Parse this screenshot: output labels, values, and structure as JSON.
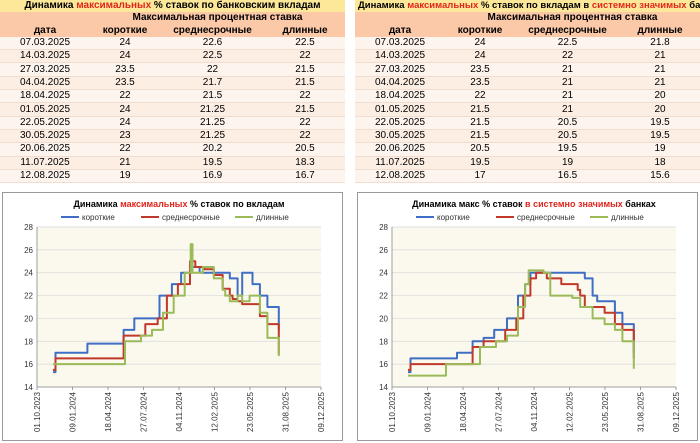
{
  "left": {
    "table": {
      "title_pre": "Динамика ",
      "title_hl": "максимальных",
      "title_post": " % ставок по банковским вкладам",
      "group_header": "Максимальная процентная ставка",
      "columns": [
        "дата",
        "короткие",
        "среднесрочные",
        "длинные"
      ],
      "rows": [
        [
          "07.03.2025",
          "24",
          "22.6",
          "22.5"
        ],
        [
          "14.03.2025",
          "24",
          "22.5",
          "22"
        ],
        [
          "27.03.2025",
          "23.5",
          "22",
          "21.5"
        ],
        [
          "04.04.2025",
          "23.5",
          "21.7",
          "21.5"
        ],
        [
          "18.04.2025",
          "22",
          "21.5",
          "22"
        ],
        [
          "01.05.2025",
          "24",
          "21.25",
          "21.5"
        ],
        [
          "22.05.2025",
          "24",
          "21.25",
          "22"
        ],
        [
          "30.05.2025",
          "23",
          "21.25",
          "22"
        ],
        [
          "20.06.2025",
          "22",
          "20.2",
          "20.5"
        ],
        [
          "11.07.2025",
          "21",
          "19.5",
          "18.3"
        ],
        [
          "12.08.2025",
          "19",
          "16.9",
          "16.7"
        ]
      ]
    },
    "chart_data": {
      "type": "line",
      "title_pre": "Динамика ",
      "title_hl": "максимальных",
      "title_post": " % ставок по вкладам",
      "ylim": [
        14,
        28
      ],
      "yticks": [
        14,
        16,
        18,
        20,
        22,
        24,
        26,
        28
      ],
      "xlim": [
        "2023-10-01",
        "2025-12-09"
      ],
      "xticks": [
        "01.10.2023",
        "09.01.2024",
        "18.04.2024",
        "27.07.2024",
        "04.11.2024",
        "12.02.2025",
        "23.05.2025",
        "31.08.2025",
        "09.12.2025"
      ],
      "series": [
        {
          "name": "короткие",
          "color": "#3f6fc4",
          "points": [
            [
              "2023-11-15",
              15.3
            ],
            [
              "2023-11-22",
              17
            ],
            [
              "2024-02-10",
              17
            ],
            [
              "2024-02-20",
              17.8
            ],
            [
              "2024-04-10",
              17.8
            ],
            [
              "2024-05-15",
              17.8
            ],
            [
              "2024-06-01",
              19
            ],
            [
              "2024-07-01",
              20
            ],
            [
              "2024-08-20",
              20
            ],
            [
              "2024-09-10",
              22
            ],
            [
              "2024-10-15",
              23
            ],
            [
              "2024-11-10",
              24
            ],
            [
              "2024-12-10",
              24.5
            ],
            [
              "2025-01-01",
              24
            ],
            [
              "2025-02-15",
              24
            ],
            [
              "2025-03-07",
              24
            ],
            [
              "2025-03-27",
              23.5
            ],
            [
              "2025-04-18",
              22
            ],
            [
              "2025-05-01",
              24
            ],
            [
              "2025-05-22",
              24
            ],
            [
              "2025-05-30",
              23
            ],
            [
              "2025-06-20",
              22
            ],
            [
              "2025-07-11",
              21
            ],
            [
              "2025-08-12",
              19
            ]
          ]
        },
        {
          "name": "среднесрочные",
          "color": "#c0392b",
          "points": [
            [
              "2023-11-15",
              15.5
            ],
            [
              "2023-11-22",
              16.5
            ],
            [
              "2024-05-15",
              16.5
            ],
            [
              "2024-06-01",
              18.5
            ],
            [
              "2024-07-10",
              18.5
            ],
            [
              "2024-08-01",
              19.5
            ],
            [
              "2024-09-05",
              20
            ],
            [
              "2024-10-01",
              22
            ],
            [
              "2024-11-01",
              23
            ],
            [
              "2024-12-05",
              25
            ],
            [
              "2024-12-20",
              24.5
            ],
            [
              "2025-01-15",
              24.3
            ],
            [
              "2025-02-10",
              23.8
            ],
            [
              "2025-03-07",
              22.6
            ],
            [
              "2025-03-27",
              22
            ],
            [
              "2025-04-04",
              21.7
            ],
            [
              "2025-04-18",
              21.5
            ],
            [
              "2025-05-01",
              21.25
            ],
            [
              "2025-05-30",
              21.25
            ],
            [
              "2025-06-20",
              20.2
            ],
            [
              "2025-07-11",
              19.5
            ],
            [
              "2025-08-12",
              16.9
            ]
          ]
        },
        {
          "name": "длинные",
          "color": "#9bbb59",
          "points": [
            [
              "2023-11-15",
              16
            ],
            [
              "2024-06-01",
              16
            ],
            [
              "2024-06-05",
              18
            ],
            [
              "2024-07-20",
              18.5
            ],
            [
              "2024-08-20",
              19
            ],
            [
              "2024-09-20",
              20.5
            ],
            [
              "2024-10-20",
              22
            ],
            [
              "2024-11-20",
              24
            ],
            [
              "2024-12-07",
              26.5
            ],
            [
              "2024-12-12",
              24
            ],
            [
              "2025-01-10",
              24.5
            ],
            [
              "2025-02-10",
              23.5
            ],
            [
              "2025-03-07",
              22.5
            ],
            [
              "2025-03-14",
              22
            ],
            [
              "2025-03-27",
              21.5
            ],
            [
              "2025-04-18",
              22
            ],
            [
              "2025-05-01",
              21.5
            ],
            [
              "2025-05-22",
              22
            ],
            [
              "2025-05-30",
              22
            ],
            [
              "2025-06-20",
              20.5
            ],
            [
              "2025-07-11",
              18.3
            ],
            [
              "2025-08-12",
              16.7
            ]
          ]
        }
      ]
    }
  },
  "right": {
    "table": {
      "title_pre": "Динамика ",
      "title_hl": "максимальных",
      "title_mid": " % ставок по вкладам в ",
      "title_hl2": "системно значимых",
      "title_post": " банках",
      "group_header": "Максимальная процентная ставка",
      "columns": [
        "дата",
        "короткие",
        "среднесрочные",
        "длинные"
      ],
      "rows": [
        [
          "07.03.2025",
          "24",
          "22.5",
          "21.8"
        ],
        [
          "14.03.2025",
          "24",
          "22",
          "21"
        ],
        [
          "27.03.2025",
          "23.5",
          "21",
          "21"
        ],
        [
          "04.04.2025",
          "23.5",
          "21",
          "21"
        ],
        [
          "18.04.2025",
          "22",
          "21",
          "20"
        ],
        [
          "01.05.2025",
          "21.5",
          "21",
          "20"
        ],
        [
          "22.05.2025",
          "21.5",
          "20.5",
          "19.5"
        ],
        [
          "30.05.2025",
          "21.5",
          "20.5",
          "19.5"
        ],
        [
          "20.06.2025",
          "20.5",
          "19.5",
          "19"
        ],
        [
          "11.07.2025",
          "19.5",
          "19",
          "18"
        ],
        [
          "12.08.2025",
          "17",
          "16.5",
          "15.6"
        ]
      ]
    },
    "chart_data": {
      "type": "line",
      "title_pre": "Динамика макс % ставок ",
      "title_hl": "в системно значимых",
      "title_post": " банках",
      "ylim": [
        14,
        28
      ],
      "yticks": [
        14,
        16,
        18,
        20,
        22,
        24,
        26,
        28
      ],
      "xlim": [
        "2023-10-01",
        "2025-12-09"
      ],
      "xticks": [
        "01.10.2023",
        "09.01.2024",
        "18.04.2024",
        "27.07.2024",
        "04.11.2024",
        "12.02.2025",
        "23.05.2025",
        "31.08.2025",
        "09.12.2025"
      ],
      "series": [
        {
          "name": "короткие",
          "color": "#3f6fc4",
          "points": [
            [
              "2023-11-15",
              15.3
            ],
            [
              "2023-11-22",
              16.5
            ],
            [
              "2024-03-20",
              16.5
            ],
            [
              "2024-04-01",
              17
            ],
            [
              "2024-05-01",
              17
            ],
            [
              "2024-05-15",
              18
            ],
            [
              "2024-06-15",
              18.3
            ],
            [
              "2024-07-15",
              19
            ],
            [
              "2024-08-20",
              20
            ],
            [
              "2024-09-20",
              22
            ],
            [
              "2024-10-10",
              23
            ],
            [
              "2024-10-25",
              24
            ],
            [
              "2025-01-01",
              24
            ],
            [
              "2025-02-10",
              24
            ],
            [
              "2025-03-07",
              24
            ],
            [
              "2025-03-27",
              23.5
            ],
            [
              "2025-04-18",
              22
            ],
            [
              "2025-05-01",
              21.5
            ],
            [
              "2025-05-30",
              21.5
            ],
            [
              "2025-06-20",
              20.5
            ],
            [
              "2025-07-11",
              19.5
            ],
            [
              "2025-08-12",
              17
            ]
          ]
        },
        {
          "name": "среднесрочные",
          "color": "#c0392b",
          "points": [
            [
              "2023-11-15",
              15.5
            ],
            [
              "2023-11-22",
              16
            ],
            [
              "2024-05-01",
              16
            ],
            [
              "2024-05-15",
              17.5
            ],
            [
              "2024-06-15",
              18
            ],
            [
              "2024-07-15",
              18
            ],
            [
              "2024-08-15",
              19
            ],
            [
              "2024-09-15",
              20
            ],
            [
              "2024-10-05",
              22
            ],
            [
              "2024-10-25",
              23.5
            ],
            [
              "2024-11-10",
              24
            ],
            [
              "2024-12-10",
              23.5
            ],
            [
              "2025-01-20",
              23
            ],
            [
              "2025-03-07",
              22.5
            ],
            [
              "2025-03-14",
              22
            ],
            [
              "2025-03-27",
              21
            ],
            [
              "2025-04-04",
              21
            ],
            [
              "2025-05-01",
              21
            ],
            [
              "2025-05-22",
              20.5
            ],
            [
              "2025-05-30",
              20.5
            ],
            [
              "2025-06-20",
              19.5
            ],
            [
              "2025-07-11",
              19
            ],
            [
              "2025-08-12",
              16.5
            ]
          ]
        },
        {
          "name": "длинные",
          "color": "#9bbb59",
          "points": [
            [
              "2023-11-15",
              15
            ],
            [
              "2024-02-20",
              15
            ],
            [
              "2024-03-01",
              16
            ],
            [
              "2024-06-01",
              16
            ],
            [
              "2024-06-05",
              17.5
            ],
            [
              "2024-07-20",
              18
            ],
            [
              "2024-08-20",
              18.5
            ],
            [
              "2024-09-20",
              21
            ],
            [
              "2024-10-10",
              23
            ],
            [
              "2024-10-20",
              24.2
            ],
            [
              "2024-12-01",
              24
            ],
            [
              "2024-12-20",
              22
            ],
            [
              "2025-01-20",
              22
            ],
            [
              "2025-02-20",
              21.8
            ],
            [
              "2025-03-07",
              21.8
            ],
            [
              "2025-03-14",
              21
            ],
            [
              "2025-04-04",
              21
            ],
            [
              "2025-04-18",
              20
            ],
            [
              "2025-05-01",
              20
            ],
            [
              "2025-05-22",
              19.5
            ],
            [
              "2025-05-30",
              19.5
            ],
            [
              "2025-06-20",
              19
            ],
            [
              "2025-07-11",
              18
            ],
            [
              "2025-08-12",
              15.6
            ]
          ]
        }
      ]
    }
  }
}
